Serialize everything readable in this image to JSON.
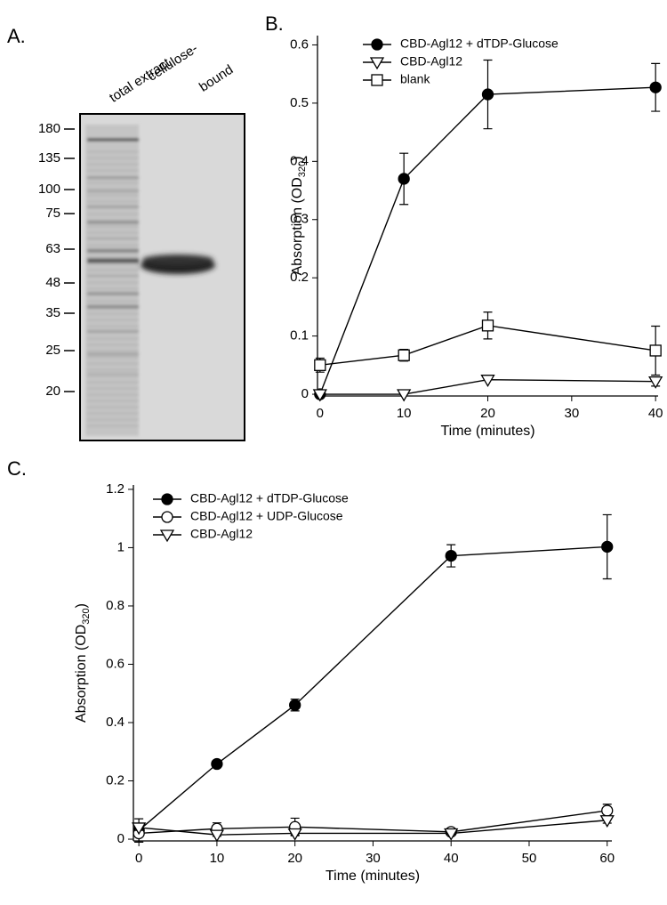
{
  "panel_labels": [
    "A.",
    "B.",
    "C."
  ],
  "gel": {
    "lanes": [
      "total extract",
      "cellulose-",
      "bound"
    ],
    "markers": [
      180,
      135,
      100,
      75,
      63,
      48,
      35,
      25,
      20
    ]
  },
  "chart_data": [
    {
      "type": "line",
      "x_label": "Time (minutes)",
      "y_label": {
        "text": "Absorption (OD",
        "sub": "320",
        "close": ")"
      },
      "x": [
        0,
        10,
        20,
        40
      ],
      "xlim": [
        -0.3,
        40.3
      ],
      "ylim": [
        -0.003,
        0.616
      ],
      "xticks": [
        0,
        10,
        20,
        30,
        40
      ],
      "yticks": [
        0,
        0.1,
        0.2,
        0.3,
        0.4,
        0.5,
        0.6
      ],
      "legend": "upper left",
      "series": [
        {
          "name": "CBD-Agl12 + dTDP-Glucose",
          "color": "#000",
          "marker": "circle",
          "fill": "#000",
          "values": [
            0,
            0.37,
            0.515,
            0.527
          ],
          "errors": [
            0,
            0.044,
            0.059,
            0.041
          ]
        },
        {
          "name": "CBD-Agl12",
          "color": "#000",
          "marker": "triangle",
          "fill": "#fff",
          "values": [
            0,
            0,
            0.025,
            0.022
          ],
          "errors": [
            0,
            0,
            0,
            0.008
          ]
        },
        {
          "name": "blank",
          "color": "#000",
          "marker": "square",
          "fill": "#fff",
          "values": [
            0.05,
            0.067,
            0.118,
            0.075
          ],
          "errors": [
            0.012,
            0.01,
            0.023,
            0.042
          ]
        }
      ]
    },
    {
      "type": "line",
      "x_label": "Time (minutes)",
      "y_label": {
        "text": "Absorption (OD",
        "sub": "320",
        "close": ")"
      },
      "x": [
        0,
        10,
        20,
        40,
        60
      ],
      "xlim": [
        -0.7,
        60.6
      ],
      "ylim": [
        -0.006,
        1.215
      ],
      "xticks": [
        0,
        10,
        20,
        30,
        40,
        50,
        60
      ],
      "yticks": [
        0,
        0.2,
        0.4,
        0.6,
        0.8,
        1,
        1.2
      ],
      "legend": "upper left",
      "series": [
        {
          "name": "CBD-Agl12 + dTDP-Glucose",
          "color": "#000",
          "marker": "circle",
          "fill": "#000",
          "values": [
            0.03,
            0.258,
            0.46,
            0.972,
            1.003
          ],
          "errors": [
            0.04,
            0.005,
            0.02,
            0.038,
            0.11
          ]
        },
        {
          "name": "CBD-Agl12 + UDP-Glucose",
          "color": "#000",
          "marker": "circle",
          "fill": "#fff",
          "values": [
            0.02,
            0.036,
            0.042,
            0.025,
            0.098
          ],
          "errors": [
            0.03,
            0.02,
            0.03,
            0.005,
            0.022
          ]
        },
        {
          "name": "CBD-Agl12",
          "color": "#000",
          "marker": "triangle",
          "fill": "#fff",
          "values": [
            0.04,
            0.015,
            0.02,
            0.02,
            0.065
          ],
          "errors": [
            0.01,
            0.005,
            0.005,
            0.003,
            0.01
          ]
        }
      ]
    }
  ]
}
